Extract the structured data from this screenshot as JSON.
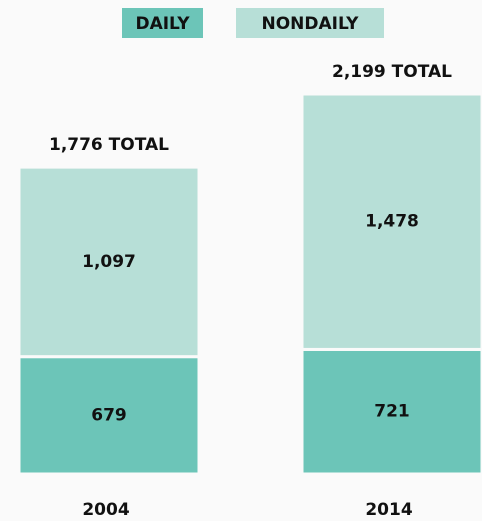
{
  "chart_data": {
    "type": "stacked-bar",
    "categories": [
      "2004",
      "2014"
    ],
    "series": [
      {
        "name": "DAILY",
        "color": "#6cc5b8",
        "values": [
          679,
          721
        ]
      },
      {
        "name": "NONDAILY",
        "color": "#b7dfd7",
        "values": [
          1097,
          1478
        ],
        "value_labels": [
          "1,097",
          "1,478"
        ]
      }
    ],
    "totals": [
      1776,
      2199
    ],
    "total_labels": [
      "1,776 TOTAL",
      "2,199 TOTAL"
    ]
  }
}
